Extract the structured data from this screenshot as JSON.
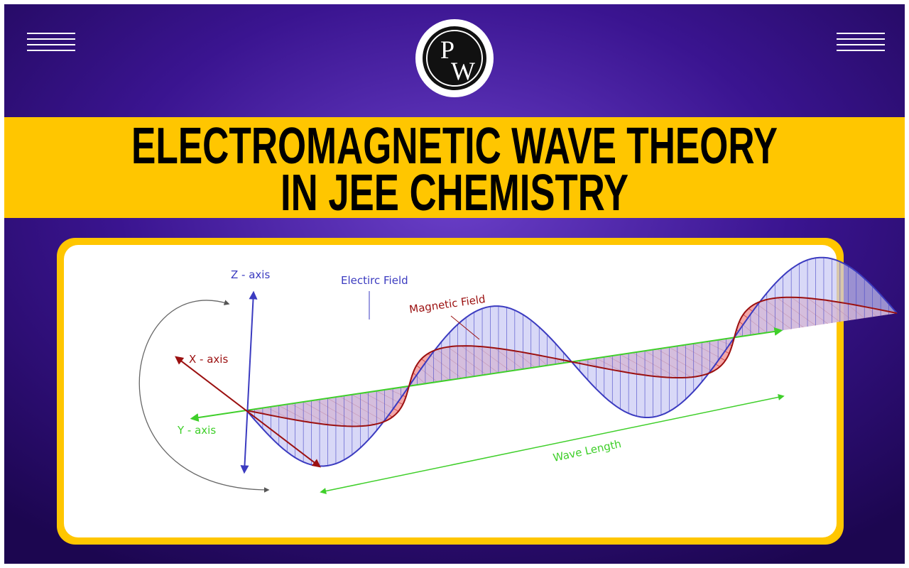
{
  "logo": {
    "letters": [
      "P",
      "W"
    ]
  },
  "header": {
    "title_lines": [
      "ELECTROMAGNETIC WAVE THEORY",
      "IN JEE CHEMISTRY"
    ]
  },
  "diagram": {
    "z_axis": "Z - axis",
    "x_axis": "X - axis",
    "y_axis": "Y - axis",
    "electric_field": "Electirc Field",
    "magnetic_field": "Magnetic Field",
    "wave_length": "Wave Length"
  }
}
